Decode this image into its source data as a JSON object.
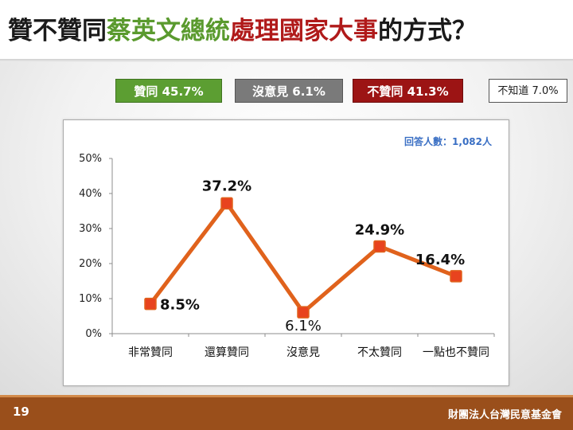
{
  "title": {
    "part1": "贊不贊同",
    "part2": "蔡英文總統",
    "part3": "處理國家大事",
    "part4": "的方式？"
  },
  "summary_boxes": {
    "agree": "贊同 45.7%",
    "neutral": "沒意見 6.1%",
    "disagree": "不贊同 41.3%",
    "unknown": "不知道 7.0%"
  },
  "colors": {
    "agree": "#5c9e32",
    "neutral": "#7a7a7a",
    "disagree": "#9c1414",
    "line": "#e0621c",
    "title_green": "#5a9a2e",
    "title_red": "#b01a1a",
    "respondents": "#3a6fc4"
  },
  "footer": {
    "page_number": "19",
    "organization": "財團法人台灣民意基金會"
  },
  "chart_data": {
    "type": "line",
    "annotation": "回答人數：1,082人",
    "categories": [
      "非常贊同",
      "還算贊同",
      "沒意見",
      "不太贊同",
      "一點也不贊同"
    ],
    "values": [
      8.5,
      37.2,
      6.1,
      24.9,
      16.4
    ],
    "data_labels": [
      "8.5%",
      "37.2%",
      "6.1%",
      "24.9%",
      "16.4%"
    ],
    "y_ticks": [
      "0%",
      "10%",
      "20%",
      "30%",
      "40%",
      "50%"
    ],
    "ylim": [
      0,
      50
    ],
    "grid": false,
    "legend": "none"
  }
}
